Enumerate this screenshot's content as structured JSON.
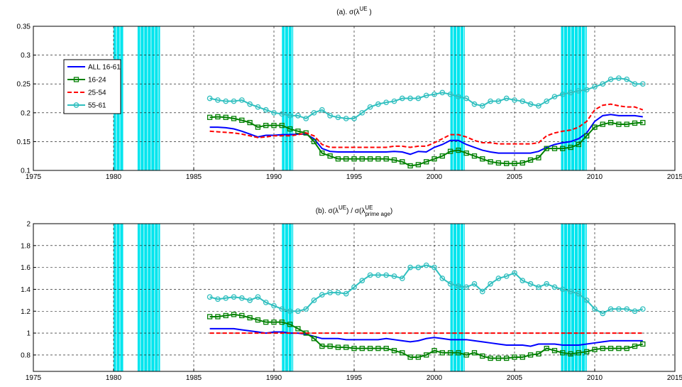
{
  "chart_data": [
    {
      "type": "line",
      "title_parts": [
        {
          "text": "(a). σ(λ",
          "pos": "base"
        },
        {
          "text": "UE",
          "pos": "sup"
        },
        {
          "text": " )",
          "pos": "base"
        }
      ],
      "x": [
        1986,
        1986.5,
        1987,
        1987.5,
        1988,
        1988.5,
        1989,
        1989.5,
        1990,
        1990.5,
        1991,
        1991.5,
        1992,
        1992.5,
        1993,
        1993.5,
        1994,
        1994.5,
        1995,
        1995.5,
        1996,
        1996.5,
        1997,
        1997.5,
        1998,
        1998.5,
        1999,
        1999.5,
        2000,
        2000.5,
        2001,
        2001.5,
        2002,
        2002.5,
        2003,
        2003.5,
        2004,
        2004.5,
        2005,
        2005.5,
        2006,
        2006.5,
        2007,
        2007.5,
        2008,
        2008.5,
        2009,
        2009.5,
        2010,
        2010.5,
        2011,
        2011.5,
        2012,
        2012.5,
        2013
      ],
      "series": [
        {
          "name": "ALL 16-61",
          "color": "#0000ff",
          "style": "solid",
          "marker": null,
          "values": [
            0.175,
            0.175,
            0.174,
            0.172,
            0.168,
            0.163,
            0.158,
            0.161,
            0.161,
            0.162,
            0.162,
            0.163,
            0.163,
            0.155,
            0.138,
            0.133,
            0.132,
            0.132,
            0.132,
            0.132,
            0.132,
            0.132,
            0.132,
            0.133,
            0.132,
            0.128,
            0.133,
            0.132,
            0.14,
            0.145,
            0.152,
            0.152,
            0.145,
            0.14,
            0.135,
            0.132,
            0.13,
            0.13,
            0.13,
            0.13,
            0.13,
            0.133,
            0.14,
            0.145,
            0.148,
            0.15,
            0.155,
            0.165,
            0.185,
            0.195,
            0.197,
            0.195,
            0.195,
            0.195,
            0.193
          ]
        },
        {
          "name": "16-24",
          "color": "#008000",
          "style": "solid",
          "marker": "square",
          "values": [
            0.192,
            0.193,
            0.192,
            0.19,
            0.187,
            0.183,
            0.175,
            0.178,
            0.178,
            0.178,
            0.172,
            0.168,
            0.165,
            0.15,
            0.13,
            0.125,
            0.12,
            0.12,
            0.12,
            0.12,
            0.12,
            0.12,
            0.12,
            0.118,
            0.115,
            0.108,
            0.11,
            0.115,
            0.12,
            0.125,
            0.133,
            0.135,
            0.13,
            0.125,
            0.12,
            0.115,
            0.113,
            0.112,
            0.112,
            0.113,
            0.118,
            0.122,
            0.138,
            0.138,
            0.138,
            0.14,
            0.145,
            0.16,
            0.175,
            0.18,
            0.183,
            0.18,
            0.18,
            0.182,
            0.183
          ]
        },
        {
          "name": "25-54",
          "color": "#ff0000",
          "style": "dashed",
          "marker": null,
          "values": [
            0.168,
            0.167,
            0.166,
            0.165,
            0.163,
            0.16,
            0.157,
            0.158,
            0.16,
            0.16,
            0.16,
            0.162,
            0.165,
            0.16,
            0.145,
            0.14,
            0.14,
            0.14,
            0.14,
            0.14,
            0.14,
            0.14,
            0.14,
            0.142,
            0.142,
            0.14,
            0.142,
            0.142,
            0.148,
            0.155,
            0.162,
            0.162,
            0.158,
            0.152,
            0.148,
            0.148,
            0.146,
            0.146,
            0.146,
            0.146,
            0.146,
            0.148,
            0.16,
            0.165,
            0.168,
            0.17,
            0.175,
            0.185,
            0.205,
            0.213,
            0.215,
            0.212,
            0.21,
            0.21,
            0.205
          ]
        },
        {
          "name": "55-61",
          "color": "#2fbfbf",
          "style": "solid",
          "marker": "circle",
          "values": [
            0.225,
            0.222,
            0.22,
            0.22,
            0.222,
            0.215,
            0.21,
            0.205,
            0.2,
            0.198,
            0.195,
            0.195,
            0.19,
            0.2,
            0.205,
            0.195,
            0.192,
            0.19,
            0.19,
            0.2,
            0.21,
            0.215,
            0.218,
            0.22,
            0.225,
            0.225,
            0.225,
            0.23,
            0.232,
            0.235,
            0.232,
            0.228,
            0.225,
            0.215,
            0.212,
            0.22,
            0.22,
            0.225,
            0.222,
            0.22,
            0.215,
            0.212,
            0.22,
            0.228,
            0.232,
            0.235,
            0.238,
            0.24,
            0.245,
            0.25,
            0.258,
            0.26,
            0.258,
            0.25,
            0.25
          ]
        }
      ],
      "shaded_periods": [
        [
          1980,
          1980.6
        ],
        [
          1981.5,
          1982.9
        ],
        [
          1990.5,
          1991.2
        ],
        [
          2001,
          2001.9
        ],
        [
          2007.9,
          2009.5
        ]
      ],
      "shade_color": "#00e5ee",
      "xlim": [
        1975,
        2015
      ],
      "xticks": [
        1975,
        1980,
        1985,
        1990,
        1995,
        2000,
        2005,
        2010,
        2015
      ],
      "ylim": [
        0.1,
        0.35
      ],
      "yticks": [
        0.1,
        0.15,
        0.2,
        0.25,
        0.3,
        0.35
      ],
      "grid": true,
      "legend": "left"
    },
    {
      "type": "line",
      "title_parts": [
        {
          "text": "(b). σ(λ",
          "pos": "base"
        },
        {
          "text": "UE",
          "pos": "sup"
        },
        {
          "text": ") / σ(λ",
          "pos": "base"
        },
        {
          "text": "UE",
          "pos": "sup"
        },
        {
          "text": "prime age",
          "pos": "sub"
        },
        {
          "text": ")",
          "pos": "base"
        }
      ],
      "x": [
        1986,
        1986.5,
        1987,
        1987.5,
        1988,
        1988.5,
        1989,
        1989.5,
        1990,
        1990.5,
        1991,
        1991.5,
        1992,
        1992.5,
        1993,
        1993.5,
        1994,
        1994.5,
        1995,
        1995.5,
        1996,
        1996.5,
        1997,
        1997.5,
        1998,
        1998.5,
        1999,
        1999.5,
        2000,
        2000.5,
        2001,
        2001.5,
        2002,
        2002.5,
        2003,
        2003.5,
        2004,
        2004.5,
        2005,
        2005.5,
        2006,
        2006.5,
        2007,
        2007.5,
        2008,
        2008.5,
        2009,
        2009.5,
        2010,
        2010.5,
        2011,
        2011.5,
        2012,
        2012.5,
        2013
      ],
      "series": [
        {
          "color": "#0000ff",
          "style": "solid",
          "marker": null,
          "values": [
            1.04,
            1.04,
            1.04,
            1.04,
            1.03,
            1.02,
            1.01,
            1,
            1.01,
            1.01,
            1,
            1,
            0.99,
            0.97,
            0.95,
            0.95,
            0.95,
            0.94,
            0.94,
            0.94,
            0.94,
            0.94,
            0.95,
            0.94,
            0.93,
            0.92,
            0.93,
            0.95,
            0.96,
            0.95,
            0.94,
            0.94,
            0.94,
            0.93,
            0.92,
            0.91,
            0.9,
            0.89,
            0.89,
            0.89,
            0.88,
            0.9,
            0.9,
            0.9,
            0.89,
            0.89,
            0.89,
            0.9,
            0.91,
            0.92,
            0.93,
            0.93,
            0.93,
            0.93,
            0.93
          ]
        },
        {
          "color": "#008000",
          "style": "solid",
          "marker": "square",
          "values": [
            1.15,
            1.15,
            1.16,
            1.17,
            1.16,
            1.14,
            1.12,
            1.1,
            1.1,
            1.1,
            1.08,
            1.04,
            1,
            0.95,
            0.88,
            0.88,
            0.87,
            0.87,
            0.86,
            0.86,
            0.86,
            0.86,
            0.86,
            0.84,
            0.82,
            0.78,
            0.78,
            0.8,
            0.84,
            0.82,
            0.82,
            0.82,
            0.8,
            0.82,
            0.79,
            0.77,
            0.77,
            0.77,
            0.78,
            0.78,
            0.8,
            0.81,
            0.86,
            0.84,
            0.82,
            0.81,
            0.82,
            0.83,
            0.85,
            0.86,
            0.86,
            0.86,
            0.86,
            0.88,
            0.9
          ]
        },
        {
          "color": "#ff0000",
          "style": "dashed",
          "marker": null,
          "values": [
            1,
            1,
            1,
            1,
            1,
            1,
            1,
            1,
            1,
            1,
            1,
            1,
            1,
            1,
            1,
            1,
            1,
            1,
            1,
            1,
            1,
            1,
            1,
            1,
            1,
            1,
            1,
            1,
            1,
            1,
            1,
            1,
            1,
            1,
            1,
            1,
            1,
            1,
            1,
            1,
            1,
            1,
            1,
            1,
            1,
            1,
            1,
            1,
            1,
            1,
            1,
            1,
            1,
            1,
            1
          ]
        },
        {
          "color": "#2fbfbf",
          "style": "solid",
          "marker": "circle",
          "values": [
            1.33,
            1.31,
            1.32,
            1.33,
            1.32,
            1.3,
            1.33,
            1.28,
            1.25,
            1.22,
            1.2,
            1.2,
            1.22,
            1.3,
            1.35,
            1.37,
            1.37,
            1.36,
            1.42,
            1.48,
            1.53,
            1.53,
            1.53,
            1.52,
            1.5,
            1.6,
            1.6,
            1.62,
            1.6,
            1.5,
            1.45,
            1.43,
            1.42,
            1.45,
            1.38,
            1.45,
            1.5,
            1.52,
            1.55,
            1.48,
            1.45,
            1.42,
            1.45,
            1.42,
            1.4,
            1.38,
            1.36,
            1.3,
            1.22,
            1.18,
            1.22,
            1.22,
            1.22,
            1.2,
            1.22
          ]
        }
      ],
      "shaded_periods": [
        [
          1980,
          1980.6
        ],
        [
          1981.5,
          1982.9
        ],
        [
          1990.5,
          1991.2
        ],
        [
          2001,
          2001.9
        ],
        [
          2007.9,
          2009.5
        ]
      ],
      "shade_color": "#00e5ee",
      "xlim": [
        1975,
        2015
      ],
      "xticks": [
        1975,
        1980,
        1985,
        1990,
        1995,
        2000,
        2005,
        2010,
        2015
      ],
      "ylim": [
        0.65,
        2
      ],
      "yticks": [
        0.8,
        1,
        1.2,
        1.4,
        1.6,
        1.8,
        2
      ],
      "grid": true
    }
  ]
}
